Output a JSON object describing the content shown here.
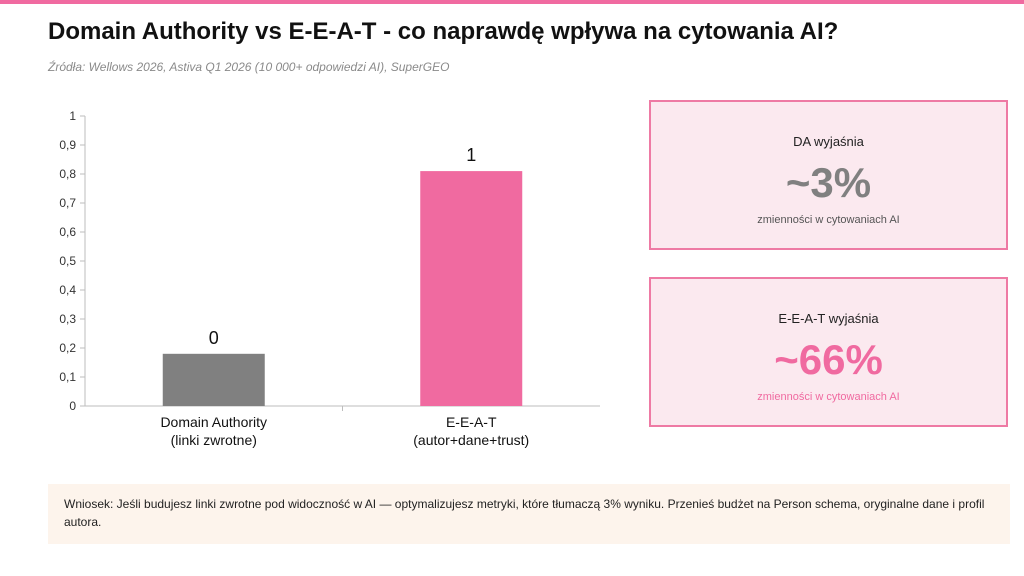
{
  "header": {
    "title": "Domain Authority vs E-E-A-T - co naprawdę wpływa na cytowania AI?",
    "subtitle": "Źródła: Wellows 2026, Astiva Q1 2026 (10 000+ odpowiedzi AI), SuperGEO"
  },
  "colors": {
    "accent": "#f06aa0",
    "bar_da": "#808080",
    "bar_eeat": "#f06aa0",
    "card_bg": "#fbe9ef",
    "card_border": "#ee7aa4",
    "value_gray": "#808080",
    "value_pink": "#f06aa0"
  },
  "chart_data": {
    "type": "bar",
    "categories": [
      [
        "Domain Authority",
        "(linki zwrotne)"
      ],
      [
        "E-E-A-T",
        "(autor+dane+trust)"
      ]
    ],
    "values": [
      0.18,
      0.81
    ],
    "data_labels": [
      "0",
      "1"
    ],
    "bar_colors": [
      "#808080",
      "#f06aa0"
    ],
    "ylim": [
      0,
      1
    ],
    "yticks": [
      "0",
      "0,1",
      "0,2",
      "0,3",
      "0,4",
      "0,5",
      "0,6",
      "0,7",
      "0,8",
      "0,9",
      "1"
    ],
    "grid": false,
    "legend": "none"
  },
  "cards": [
    {
      "label": "DA wyjaśnia",
      "value": "~3%",
      "note": "zmienności w cytowaniach AI"
    },
    {
      "label": "E-E-A-T wyjaśnia",
      "value": "~66%",
      "note": "zmienności w cytowaniach AI"
    }
  ],
  "footer": {
    "text": "Wniosek: Jeśli budujesz linki zwrotne pod widoczność w AI — optymalizujesz metryki, które tłumaczą 3% wyniku. Przenieś budżet na Person schema, oryginalne dane i profil autora."
  }
}
